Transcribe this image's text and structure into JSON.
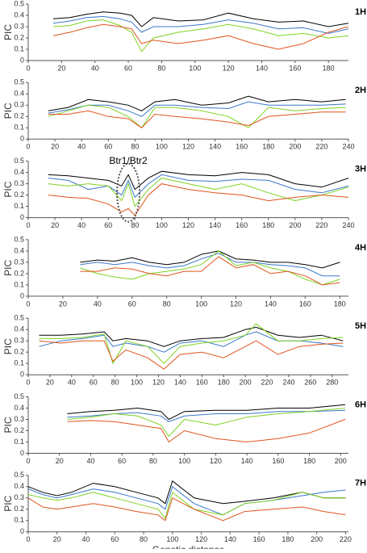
{
  "chart_data": [
    {
      "type": "line",
      "panel_label": "1H",
      "ylabel": "PIC",
      "xlim": [
        0,
        192
      ],
      "xticks": [
        0,
        20,
        40,
        60,
        80,
        100,
        120,
        140,
        160,
        180
      ],
      "ylim": [
        0,
        0.5
      ],
      "yticks": [
        0,
        0.1,
        0.2,
        0.3,
        0.4,
        0.5
      ],
      "x": [
        15,
        25,
        35,
        45,
        55,
        62,
        68,
        75,
        90,
        105,
        120,
        135,
        150,
        165,
        180,
        192
      ],
      "series": [
        {
          "color": "#000000",
          "values": [
            0.37,
            0.38,
            0.41,
            0.43,
            0.42,
            0.4,
            0.3,
            0.38,
            0.35,
            0.36,
            0.42,
            0.37,
            0.34,
            0.35,
            0.3,
            0.33
          ]
        },
        {
          "color": "#3a78c9",
          "values": [
            0.33,
            0.35,
            0.38,
            0.39,
            0.37,
            0.34,
            0.25,
            0.3,
            0.3,
            0.32,
            0.36,
            0.33,
            0.28,
            0.29,
            0.24,
            0.28
          ]
        },
        {
          "color": "#7ed321",
          "values": [
            0.3,
            0.31,
            0.35,
            0.36,
            0.31,
            0.25,
            0.08,
            0.2,
            0.25,
            0.28,
            0.32,
            0.28,
            0.22,
            0.24,
            0.2,
            0.22
          ]
        },
        {
          "color": "#e0531f",
          "values": [
            0.22,
            0.25,
            0.29,
            0.32,
            0.3,
            0.28,
            0.15,
            0.18,
            0.15,
            0.18,
            0.22,
            0.15,
            0.1,
            0.15,
            0.25,
            0.3
          ]
        }
      ]
    },
    {
      "type": "line",
      "panel_label": "2H",
      "ylabel": "PIC",
      "xlim": [
        0,
        240
      ],
      "xticks": [
        0,
        20,
        40,
        60,
        80,
        100,
        120,
        140,
        160,
        180,
        200,
        220,
        240
      ],
      "ylim": [
        0,
        0.5
      ],
      "yticks": [
        0,
        0.1,
        0.2,
        0.3,
        0.4,
        0.5
      ],
      "x": [
        15,
        30,
        45,
        60,
        75,
        85,
        95,
        110,
        130,
        150,
        165,
        180,
        200,
        220,
        238
      ],
      "series": [
        {
          "color": "#000000",
          "values": [
            0.25,
            0.28,
            0.35,
            0.33,
            0.3,
            0.25,
            0.33,
            0.35,
            0.3,
            0.32,
            0.38,
            0.33,
            0.35,
            0.33,
            0.35
          ]
        },
        {
          "color": "#3a78c9",
          "values": [
            0.23,
            0.26,
            0.3,
            0.3,
            0.25,
            0.2,
            0.3,
            0.3,
            0.28,
            0.27,
            0.33,
            0.3,
            0.3,
            0.3,
            0.31
          ]
        },
        {
          "color": "#7ed321",
          "values": [
            0.2,
            0.25,
            0.3,
            0.28,
            0.2,
            0.1,
            0.28,
            0.28,
            0.25,
            0.2,
            0.1,
            0.28,
            0.25,
            0.27,
            0.28
          ]
        },
        {
          "color": "#e0531f",
          "values": [
            0.22,
            0.22,
            0.25,
            0.2,
            0.18,
            0.1,
            0.22,
            0.2,
            0.18,
            0.15,
            0.12,
            0.2,
            0.22,
            0.24,
            0.24
          ]
        }
      ]
    },
    {
      "type": "line",
      "panel_label": "3H",
      "ylabel": "PIC",
      "annotation": "Btr1/Btr2",
      "xlim": [
        0,
        240
      ],
      "xticks": [
        0,
        20,
        40,
        60,
        80,
        100,
        120,
        140,
        160,
        180,
        200,
        220,
        240
      ],
      "ylim": [
        0,
        0.5
      ],
      "yticks": [
        0,
        0.1,
        0.2,
        0.3,
        0.4,
        0.5
      ],
      "x": [
        15,
        30,
        45,
        60,
        70,
        75,
        80,
        90,
        100,
        120,
        140,
        160,
        180,
        200,
        220,
        240
      ],
      "series": [
        {
          "color": "#000000",
          "values": [
            0.38,
            0.37,
            0.35,
            0.33,
            0.28,
            0.38,
            0.25,
            0.35,
            0.41,
            0.38,
            0.37,
            0.4,
            0.38,
            0.3,
            0.27,
            0.35
          ]
        },
        {
          "color": "#3a78c9",
          "values": [
            0.35,
            0.33,
            0.25,
            0.28,
            0.2,
            0.33,
            0.18,
            0.3,
            0.38,
            0.33,
            0.32,
            0.34,
            0.33,
            0.25,
            0.22,
            0.28
          ]
        },
        {
          "color": "#7ed321",
          "values": [
            0.3,
            0.28,
            0.3,
            0.28,
            0.15,
            0.3,
            0.1,
            0.25,
            0.35,
            0.3,
            0.25,
            0.3,
            0.22,
            0.15,
            0.2,
            0.27
          ]
        },
        {
          "color": "#e0531f",
          "values": [
            0.2,
            0.18,
            0.17,
            0.12,
            0.05,
            0.08,
            0.02,
            0.2,
            0.3,
            0.25,
            0.22,
            0.2,
            0.15,
            0.18,
            0.2,
            0.18
          ]
        }
      ]
    },
    {
      "type": "line",
      "panel_label": "4H",
      "ylabel": "PIC",
      "xlim": [
        0,
        185
      ],
      "xticks": [
        0,
        20,
        40,
        60,
        80,
        100,
        120,
        140,
        160,
        180
      ],
      "ylim": [
        0,
        0.5
      ],
      "yticks": [
        0,
        0.1,
        0.2,
        0.3,
        0.4,
        0.5
      ],
      "x": [
        30,
        40,
        50,
        60,
        70,
        80,
        90,
        100,
        110,
        120,
        130,
        140,
        150,
        160,
        170,
        180
      ],
      "series": [
        {
          "color": "#000000",
          "values": [
            0.3,
            0.32,
            0.31,
            0.34,
            0.3,
            0.28,
            0.3,
            0.37,
            0.4,
            0.33,
            0.32,
            0.3,
            0.3,
            0.28,
            0.25,
            0.3
          ]
        },
        {
          "color": "#3a78c9",
          "values": [
            0.28,
            0.3,
            0.28,
            0.3,
            0.27,
            0.25,
            0.27,
            0.33,
            0.38,
            0.3,
            0.3,
            0.28,
            0.27,
            0.25,
            0.18,
            0.18
          ]
        },
        {
          "color": "#7ed321",
          "values": [
            0.25,
            0.2,
            0.17,
            0.15,
            0.2,
            0.22,
            0.24,
            0.28,
            0.4,
            0.27,
            0.3,
            0.25,
            0.22,
            0.15,
            0.1,
            0.15
          ]
        },
        {
          "color": "#e0531f",
          "values": [
            0.22,
            0.22,
            0.25,
            0.24,
            0.2,
            0.18,
            0.22,
            0.22,
            0.35,
            0.25,
            0.28,
            0.2,
            0.22,
            0.18,
            0.1,
            0.12
          ]
        }
      ]
    },
    {
      "type": "line",
      "panel_label": "5H",
      "ylabel": "PIC",
      "xlim": [
        0,
        295
      ],
      "xticks": [
        0,
        20,
        40,
        60,
        80,
        100,
        120,
        140,
        160,
        180,
        200,
        220,
        240,
        260,
        280
      ],
      "ylim": [
        0,
        0.5
      ],
      "yticks": [
        0,
        0.1,
        0.2,
        0.3,
        0.4,
        0.5
      ],
      "x": [
        10,
        30,
        50,
        70,
        78,
        90,
        110,
        125,
        140,
        160,
        180,
        200,
        210,
        230,
        250,
        270,
        290
      ],
      "series": [
        {
          "color": "#000000",
          "values": [
            0.35,
            0.35,
            0.36,
            0.38,
            0.3,
            0.32,
            0.3,
            0.25,
            0.3,
            0.32,
            0.33,
            0.4,
            0.42,
            0.35,
            0.33,
            0.35,
            0.3
          ]
        },
        {
          "color": "#3a78c9",
          "values": [
            0.25,
            0.3,
            0.32,
            0.35,
            0.25,
            0.28,
            0.25,
            0.2,
            0.28,
            0.3,
            0.25,
            0.35,
            0.38,
            0.3,
            0.3,
            0.28,
            0.25
          ]
        },
        {
          "color": "#7ed321",
          "values": [
            0.32,
            0.32,
            0.33,
            0.36,
            0.1,
            0.3,
            0.25,
            0.1,
            0.25,
            0.28,
            0.3,
            0.35,
            0.45,
            0.3,
            0.3,
            0.32,
            0.33
          ]
        },
        {
          "color": "#e0531f",
          "values": [
            0.3,
            0.28,
            0.3,
            0.3,
            0.12,
            0.22,
            0.15,
            0.05,
            0.18,
            0.2,
            0.15,
            0.25,
            0.3,
            0.18,
            0.25,
            0.27,
            0.28
          ]
        }
      ]
    },
    {
      "type": "line",
      "panel_label": "6H",
      "ylabel": "PIC",
      "xlim": [
        0,
        205
      ],
      "xticks": [
        0,
        20,
        40,
        60,
        80,
        100,
        120,
        140,
        160,
        180,
        200
      ],
      "ylim": [
        0,
        0.5
      ],
      "yticks": [
        0,
        0.1,
        0.2,
        0.3,
        0.4,
        0.5
      ],
      "x": [
        25,
        40,
        55,
        70,
        85,
        90,
        100,
        120,
        140,
        160,
        180,
        203
      ],
      "series": [
        {
          "color": "#000000",
          "values": [
            0.35,
            0.37,
            0.38,
            0.4,
            0.37,
            0.3,
            0.37,
            0.38,
            0.38,
            0.4,
            0.4,
            0.43
          ]
        },
        {
          "color": "#3a78c9",
          "values": [
            0.32,
            0.33,
            0.35,
            0.36,
            0.33,
            0.28,
            0.33,
            0.35,
            0.35,
            0.37,
            0.37,
            0.38
          ]
        },
        {
          "color": "#7ed321",
          "values": [
            0.3,
            0.32,
            0.35,
            0.33,
            0.25,
            0.15,
            0.3,
            0.25,
            0.32,
            0.35,
            0.37,
            0.4
          ]
        },
        {
          "color": "#e0531f",
          "values": [
            0.28,
            0.29,
            0.28,
            0.25,
            0.22,
            0.1,
            0.2,
            0.13,
            0.1,
            0.13,
            0.18,
            0.3
          ]
        }
      ]
    },
    {
      "type": "line",
      "panel_label": "7H",
      "ylabel": "PIC",
      "xlabel": "Genetic distance",
      "xlim": [
        0,
        222
      ],
      "xticks": [
        0,
        20,
        40,
        60,
        80,
        100,
        120,
        140,
        160,
        180,
        200,
        220
      ],
      "ylim": [
        0,
        0.5
      ],
      "yticks": [
        0,
        0.1,
        0.2,
        0.3,
        0.4,
        0.5
      ],
      "x": [
        0,
        10,
        20,
        30,
        45,
        60,
        75,
        90,
        95,
        100,
        115,
        135,
        150,
        170,
        190,
        205,
        220
      ],
      "series": [
        {
          "color": "#000000",
          "values": [
            0.4,
            0.35,
            0.32,
            0.35,
            0.43,
            0.4,
            0.35,
            0.3,
            0.25,
            0.45,
            0.3,
            0.25,
            0.27,
            0.3,
            0.35,
            0.3,
            0.3
          ]
        },
        {
          "color": "#3a78c9",
          "values": [
            0.38,
            0.33,
            0.3,
            0.33,
            0.38,
            0.35,
            0.3,
            0.25,
            0.2,
            0.4,
            0.25,
            0.15,
            0.25,
            0.28,
            0.32,
            0.35,
            0.37
          ]
        },
        {
          "color": "#7ed321",
          "values": [
            0.33,
            0.3,
            0.28,
            0.3,
            0.35,
            0.3,
            0.25,
            0.2,
            0.12,
            0.35,
            0.2,
            0.15,
            0.25,
            0.28,
            0.35,
            0.3,
            0.3
          ]
        },
        {
          "color": "#e0531f",
          "values": [
            0.3,
            0.22,
            0.2,
            0.22,
            0.25,
            0.22,
            0.18,
            0.15,
            0.1,
            0.3,
            0.2,
            0.1,
            0.18,
            0.2,
            0.22,
            0.18,
            0.15
          ]
        }
      ]
    }
  ]
}
